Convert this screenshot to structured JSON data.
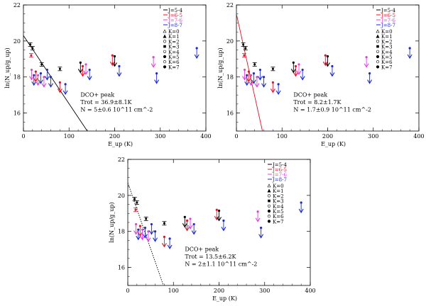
{
  "figure": {
    "description_labels": {
      "legend_transitions": [
        "J=5-4",
        "J=6-5",
        "J=7-6",
        "J=8-7"
      ],
      "legend_k": [
        "K=0",
        "K=1",
        "K=2",
        "K=3",
        "K=4",
        "K=5",
        "K=6",
        "K=7"
      ]
    },
    "colors": {
      "j54": "#000000",
      "j65": "#e8102a",
      "j76": "#e040e0",
      "j87": "#1a2ad0",
      "fit_left": "#000000",
      "fit_mid": "#e0101a"
    }
  },
  "chart_data": [
    {
      "type": "scatter",
      "panel": "top-left",
      "xlabel": "E_up (K)",
      "ylabel": "ln(N_up/g_up)",
      "xlim": [
        0,
        400
      ],
      "ylim": [
        15,
        22
      ],
      "xticks": [
        "0",
        "100",
        "200",
        "300",
        "400"
      ],
      "yticks": [
        "16",
        "18",
        "20",
        "22"
      ],
      "annotation": [
        "DCO+ peak",
        "Trot = 36.9±8.1K",
        "N = 5±0.6 10^11 cm^-2"
      ],
      "fit_line": {
        "x": [
          0,
          140
        ],
        "y": [
          20.3,
          15.0
        ],
        "style": "solid"
      },
      "detections": [
        {
          "x": 15,
          "y": 19.8,
          "err": 0.1,
          "color": "j54"
        },
        {
          "x": 20,
          "y": 19.6,
          "err": 0.1,
          "color": "j54"
        },
        {
          "x": 17,
          "y": 19.2,
          "err": 0.1,
          "color": "j65"
        },
        {
          "x": 40,
          "y": 18.7,
          "err": 0.1,
          "color": "j54"
        },
        {
          "x": 80,
          "y": 18.45,
          "err": 0.1,
          "color": "j54"
        }
      ],
      "upper_limits": [
        {
          "x": 18,
          "y": 18.4,
          "color": "j76"
        },
        {
          "x": 23,
          "y": 18.1,
          "color": "j87"
        },
        {
          "x": 27,
          "y": 18.3,
          "color": "j65"
        },
        {
          "x": 32,
          "y": 18.1,
          "color": "j76"
        },
        {
          "x": 38,
          "y": 18.2,
          "color": "j87"
        },
        {
          "x": 45,
          "y": 18.0,
          "color": "j76"
        },
        {
          "x": 52,
          "y": 18.4,
          "color": "j87"
        },
        {
          "x": 60,
          "y": 18.0,
          "color": "j87"
        },
        {
          "x": 80,
          "y": 17.7,
          "color": "j65"
        },
        {
          "x": 92,
          "y": 17.6,
          "color": "j87"
        },
        {
          "x": 125,
          "y": 18.8,
          "color": "j54"
        },
        {
          "x": 130,
          "y": 18.6,
          "color": "j65"
        },
        {
          "x": 137,
          "y": 18.7,
          "color": "j76"
        },
        {
          "x": 145,
          "y": 18.4,
          "color": "j87"
        },
        {
          "x": 195,
          "y": 19.2,
          "color": "j65"
        },
        {
          "x": 200,
          "y": 19.15,
          "color": "j54"
        },
        {
          "x": 210,
          "y": 18.6,
          "color": "j87"
        },
        {
          "x": 285,
          "y": 19.1,
          "color": "j76"
        },
        {
          "x": 292,
          "y": 18.2,
          "color": "j87"
        },
        {
          "x": 380,
          "y": 19.6,
          "color": "j87"
        }
      ]
    },
    {
      "type": "scatter",
      "panel": "top-right",
      "xlabel": "E_up (K)",
      "ylabel": "ln(N_up/g_up)",
      "xlim": [
        0,
        400
      ],
      "ylim": [
        15,
        22
      ],
      "xticks": [
        "0",
        "100",
        "200",
        "300",
        "400"
      ],
      "yticks": [
        "16",
        "18",
        "20",
        "22"
      ],
      "annotation": [
        "DCO+ peak",
        "Trot = 8.2±1.7K",
        "N = 1.7±0.9 10^11 cm^-2"
      ],
      "fit_line": {
        "x": [
          0,
          57
        ],
        "y": [
          21.5,
          15.0
        ],
        "style": "solid"
      },
      "detections": [
        {
          "x": 15,
          "y": 19.8,
          "err": 0.1,
          "color": "j54"
        },
        {
          "x": 20,
          "y": 19.6,
          "err": 0.1,
          "color": "j54"
        },
        {
          "x": 17,
          "y": 19.2,
          "err": 0.1,
          "color": "j65"
        },
        {
          "x": 40,
          "y": 18.7,
          "err": 0.1,
          "color": "j54"
        },
        {
          "x": 80,
          "y": 18.45,
          "err": 0.1,
          "color": "j54"
        }
      ],
      "upper_limits": [
        {
          "x": 18,
          "y": 18.4,
          "color": "j76"
        },
        {
          "x": 23,
          "y": 18.1,
          "color": "j87"
        },
        {
          "x": 27,
          "y": 18.3,
          "color": "j65"
        },
        {
          "x": 32,
          "y": 18.1,
          "color": "j76"
        },
        {
          "x": 38,
          "y": 18.2,
          "color": "j87"
        },
        {
          "x": 45,
          "y": 18.0,
          "color": "j76"
        },
        {
          "x": 52,
          "y": 18.4,
          "color": "j87"
        },
        {
          "x": 60,
          "y": 18.0,
          "color": "j87"
        },
        {
          "x": 80,
          "y": 17.7,
          "color": "j65"
        },
        {
          "x": 92,
          "y": 17.6,
          "color": "j87"
        },
        {
          "x": 125,
          "y": 18.8,
          "color": "j54"
        },
        {
          "x": 130,
          "y": 18.6,
          "color": "j65"
        },
        {
          "x": 137,
          "y": 18.7,
          "color": "j76"
        },
        {
          "x": 145,
          "y": 18.4,
          "color": "j87"
        },
        {
          "x": 195,
          "y": 19.2,
          "color": "j65"
        },
        {
          "x": 200,
          "y": 19.15,
          "color": "j54"
        },
        {
          "x": 210,
          "y": 18.6,
          "color": "j87"
        },
        {
          "x": 285,
          "y": 19.1,
          "color": "j76"
        },
        {
          "x": 292,
          "y": 18.2,
          "color": "j87"
        },
        {
          "x": 380,
          "y": 19.6,
          "color": "j87"
        }
      ]
    },
    {
      "type": "scatter",
      "panel": "bottom",
      "xlabel": "E_up (K)",
      "ylabel": "ln(N_up/g_up)",
      "xlim": [
        0,
        400
      ],
      "ylim": [
        15,
        22
      ],
      "xticks": [
        "0",
        "100",
        "200",
        "300",
        "400"
      ],
      "yticks": [
        "16",
        "18",
        "20",
        "22"
      ],
      "annotation": [
        "DCO+ peak",
        "Trot = 13.5±6.2K",
        "N = 2±1.1 10^11 cm^-2"
      ],
      "fit_line": {
        "x": [
          0,
          78
        ],
        "y": [
          20.7,
          15.0
        ],
        "style": "dotted"
      },
      "detections": [
        {
          "x": 15,
          "y": 19.8,
          "err": 0.1,
          "color": "j54"
        },
        {
          "x": 20,
          "y": 19.6,
          "err": 0.1,
          "color": "j54"
        },
        {
          "x": 17,
          "y": 19.2,
          "err": 0.1,
          "color": "j65"
        },
        {
          "x": 40,
          "y": 18.7,
          "err": 0.1,
          "color": "j54"
        },
        {
          "x": 80,
          "y": 18.45,
          "err": 0.1,
          "color": "j54"
        }
      ],
      "upper_limits": [
        {
          "x": 18,
          "y": 18.4,
          "color": "j76"
        },
        {
          "x": 23,
          "y": 18.1,
          "color": "j87"
        },
        {
          "x": 27,
          "y": 18.3,
          "color": "j65"
        },
        {
          "x": 32,
          "y": 18.1,
          "color": "j76"
        },
        {
          "x": 38,
          "y": 18.2,
          "color": "j87"
        },
        {
          "x": 45,
          "y": 18.0,
          "color": "j76"
        },
        {
          "x": 52,
          "y": 18.4,
          "color": "j87"
        },
        {
          "x": 60,
          "y": 18.0,
          "color": "j87"
        },
        {
          "x": 80,
          "y": 17.7,
          "color": "j65"
        },
        {
          "x": 92,
          "y": 17.6,
          "color": "j87"
        },
        {
          "x": 125,
          "y": 18.8,
          "color": "j54"
        },
        {
          "x": 130,
          "y": 18.6,
          "color": "j65"
        },
        {
          "x": 137,
          "y": 18.7,
          "color": "j76"
        },
        {
          "x": 145,
          "y": 18.4,
          "color": "j87"
        },
        {
          "x": 195,
          "y": 19.2,
          "color": "j65"
        },
        {
          "x": 200,
          "y": 19.15,
          "color": "j54"
        },
        {
          "x": 210,
          "y": 18.6,
          "color": "j87"
        },
        {
          "x": 285,
          "y": 19.1,
          "color": "j76"
        },
        {
          "x": 292,
          "y": 18.2,
          "color": "j87"
        },
        {
          "x": 380,
          "y": 19.6,
          "color": "j87"
        }
      ]
    }
  ]
}
